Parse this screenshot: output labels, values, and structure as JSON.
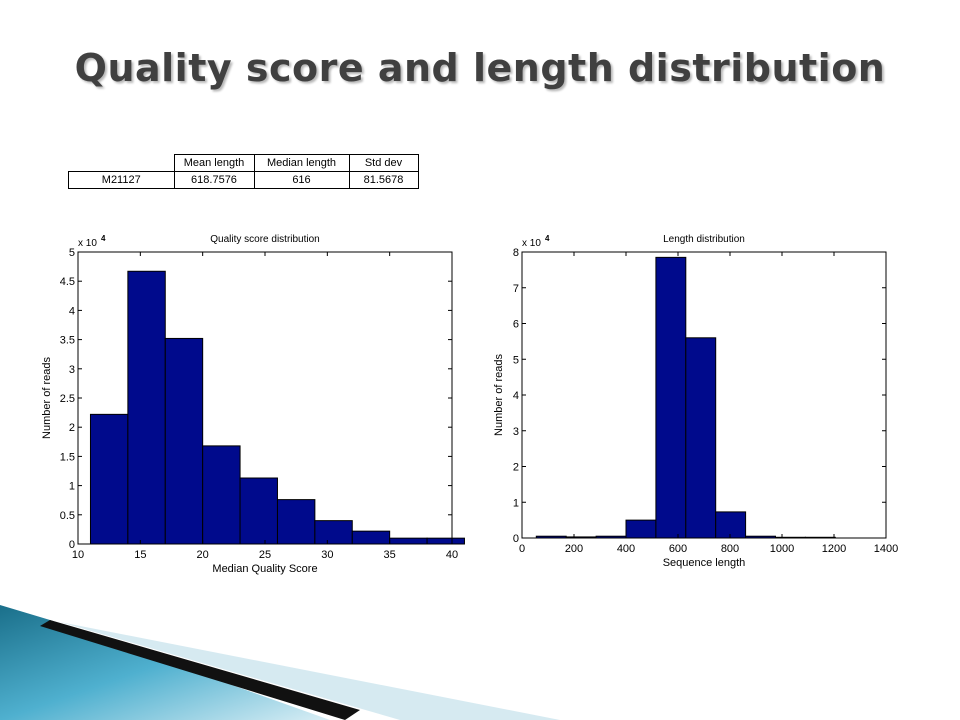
{
  "slide": {
    "title": "Quality score and length distribution"
  },
  "stats_table": {
    "headers": [
      "",
      "Mean length",
      "Median length",
      "Std dev"
    ],
    "rows": [
      [
        "M21127",
        "618.7576",
        "616",
        "81.5678"
      ]
    ]
  },
  "chart_data": [
    {
      "type": "bar",
      "title": "Quality score distribution",
      "xlabel": "Median Quality Score",
      "ylabel": "Number of reads",
      "multiplier_base": "x 10",
      "multiplier_exp": "4",
      "bar_color": "#000a8c",
      "xlim": [
        10,
        40
      ],
      "ylim": [
        0,
        5
      ],
      "xticks": [
        10,
        15,
        20,
        25,
        30,
        35,
        40
      ],
      "yticks": [
        0,
        0.5,
        1,
        1.5,
        2,
        2.5,
        3,
        3.5,
        4,
        4.5,
        5
      ],
      "bin_edges": [
        11,
        14,
        17,
        20,
        23,
        26,
        29,
        32,
        35,
        38,
        41
      ],
      "values": [
        2.22,
        4.67,
        3.52,
        1.68,
        1.13,
        0.76,
        0.4,
        0.22,
        0.1,
        0.1
      ]
    },
    {
      "type": "bar",
      "title": "Length distribution",
      "xlabel": "Sequence length",
      "ylabel": "Number of reads",
      "multiplier_base": "x 10",
      "multiplier_exp": "4",
      "bar_color": "#000a8c",
      "xlim": [
        0,
        1400
      ],
      "ylim": [
        0,
        8
      ],
      "xticks": [
        0,
        200,
        400,
        600,
        800,
        1000,
        1200,
        1400
      ],
      "yticks": [
        0,
        1,
        2,
        3,
        4,
        5,
        6,
        7,
        8
      ],
      "bin_edges": [
        55,
        170,
        285,
        400,
        515,
        630,
        745,
        860,
        975,
        1090,
        1205
      ],
      "values": [
        0.05,
        0.03,
        0.05,
        0.5,
        7.85,
        5.6,
        0.73,
        0.05,
        0.02,
        0.02
      ]
    }
  ]
}
